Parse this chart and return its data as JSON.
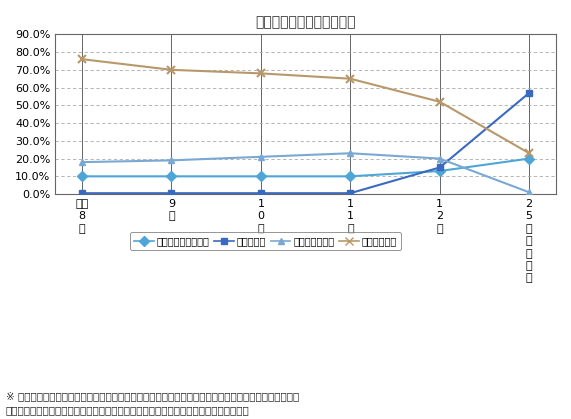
{
  "title": "生活排水の処理形態別人口",
  "x_labels": [
    "平成\n8\n年",
    "9\n年",
    "1\n0\n年",
    "1\n1\n年",
    "1\n2\n年",
    "2\n5\n年\n（\n計\n画\n）"
  ],
  "x_positions": [
    0,
    1,
    2,
    3,
    4,
    5
  ],
  "series_order": [
    "合併処理浄化槽人口",
    "下水道人口",
    "単独浄化槽人口",
    "汲み取り尿尿"
  ],
  "series": {
    "合併処理浄化槽人口": {
      "values": [
        10.0,
        10.0,
        10.0,
        10.0,
        13.0,
        20.0
      ],
      "color": "#4da6d7",
      "marker": "D",
      "linestyle": "-",
      "linewidth": 1.5,
      "markersize": 5
    },
    "下水道人口": {
      "values": [
        0.5,
        0.5,
        0.5,
        0.5,
        15.0,
        57.0
      ],
      "color": "#3a6abf",
      "marker": "s",
      "linestyle": "-",
      "linewidth": 1.5,
      "markersize": 5
    },
    "単独浄化槽人口": {
      "values": [
        18.0,
        19.0,
        21.0,
        23.0,
        20.0,
        1.0
      ],
      "color": "#7aa8d4",
      "marker": "^",
      "linestyle": "-",
      "linewidth": 1.5,
      "markersize": 5
    },
    "汲み取り尿尿": {
      "values": [
        76.0,
        70.0,
        68.0,
        65.0,
        52.0,
        23.0
      ],
      "color": "#b8986a",
      "marker": "x",
      "linestyle": "-",
      "linewidth": 1.5,
      "markersize": 6,
      "markeredgewidth": 1.5
    }
  },
  "ylim": [
    0.0,
    90.0
  ],
  "yticks": [
    0.0,
    10.0,
    20.0,
    30.0,
    40.0,
    50.0,
    60.0,
    70.0,
    80.0,
    90.0
  ],
  "xlim": [
    -0.3,
    5.3
  ],
  "footnote": "※ 公共下水道は、計画年度の平成２３年には全町民の６６％の普及率、合併処理浄化槽は同じく２２％\nの普及率を目指しています。これらを合わせて、９５％の生活排水処理率となります。",
  "bg_color": "#ffffff",
  "grid_color": "#aaaaaa",
  "spine_color": "#666666",
  "vline_color": "#666666"
}
